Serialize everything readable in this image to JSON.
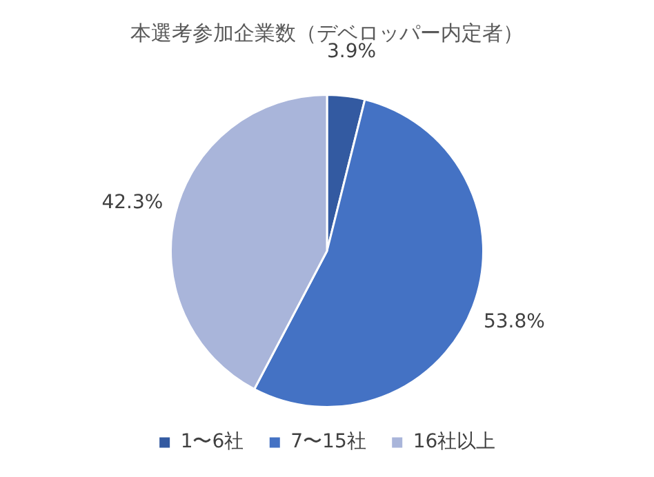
{
  "chart_data": {
    "type": "pie",
    "title": "本選考参加企業数（デベロッパー内定者）",
    "categories": [
      "1〜6社",
      "7〜15社",
      "16社以上"
    ],
    "values": [
      3.9,
      53.8,
      42.3
    ],
    "value_labels": [
      "3.9%",
      "53.8%",
      "42.3%"
    ],
    "colors": [
      "#335aa1",
      "#4472c4",
      "#a9b5da"
    ],
    "legend": "bottom"
  }
}
